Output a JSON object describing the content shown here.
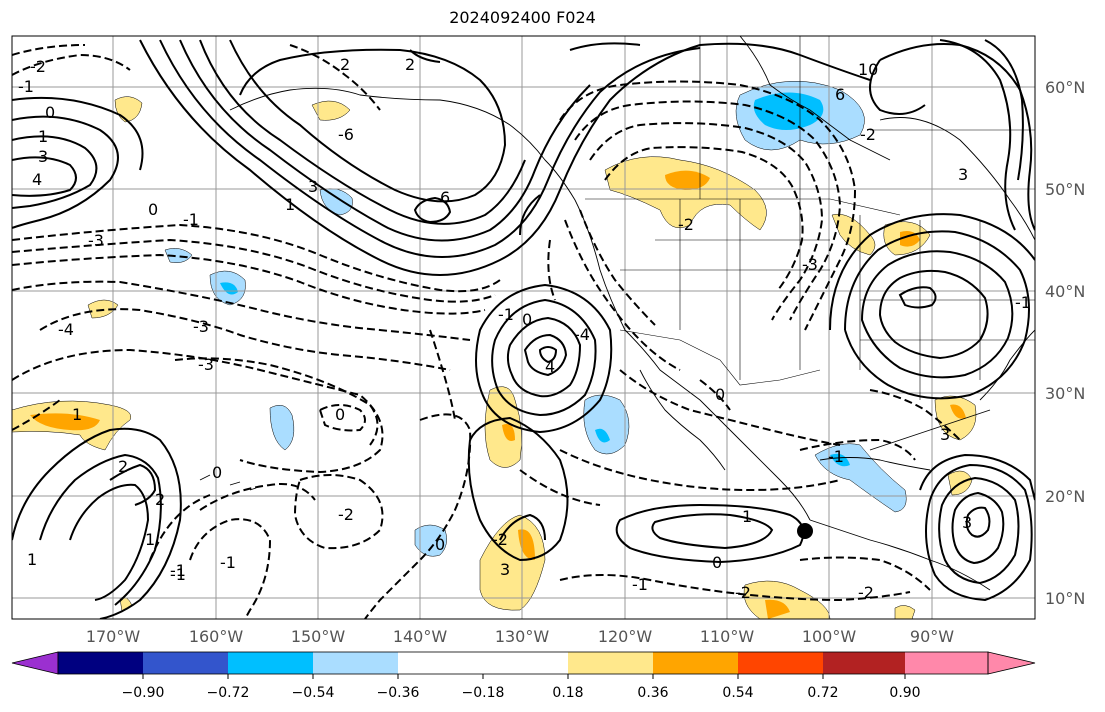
{
  "title": "2024092400 F024",
  "latitude_labels": [
    "60°N",
    "50°N",
    "40°N",
    "30°N",
    "20°N",
    "10°N"
  ],
  "longitude_labels": [
    "170°W",
    "160°W",
    "150°W",
    "140°W",
    "130°W",
    "120°W",
    "110°W",
    "100°W",
    "90°W"
  ],
  "colorbar": {
    "tick_labels": [
      "−0.90",
      "−0.72",
      "−0.54",
      "−0.36",
      "−0.18",
      "0.18",
      "0.36",
      "0.54",
      "0.72",
      "0.90"
    ],
    "colors": [
      "#9b30d0",
      "#000080",
      "#3355cc",
      "#00bfff",
      "#aaddff",
      "#ffffff",
      "#ffe88c",
      "#ffa500",
      "#ff4500",
      "#b22222",
      "#ff88aa"
    ]
  },
  "contour_labels": [
    "2",
    "-2",
    "-1",
    "0",
    "1",
    "3",
    "4",
    "-3",
    "-4",
    "0",
    "-1",
    "6",
    "3",
    "-6",
    "2",
    "1",
    "-3",
    "4",
    "-4",
    "-1",
    "0",
    "-3",
    "1",
    "2",
    "1",
    "0",
    "-1",
    "0",
    "-2",
    "-1",
    "3",
    "6",
    "10",
    "-3",
    "3",
    "3",
    "0",
    "-1",
    "-2",
    "1",
    "-1",
    "0",
    "-2",
    "0",
    "-2",
    "1",
    "2",
    "3",
    "-1",
    "-2",
    "-2",
    "-1"
  ],
  "marker": "storm-center-dot"
}
